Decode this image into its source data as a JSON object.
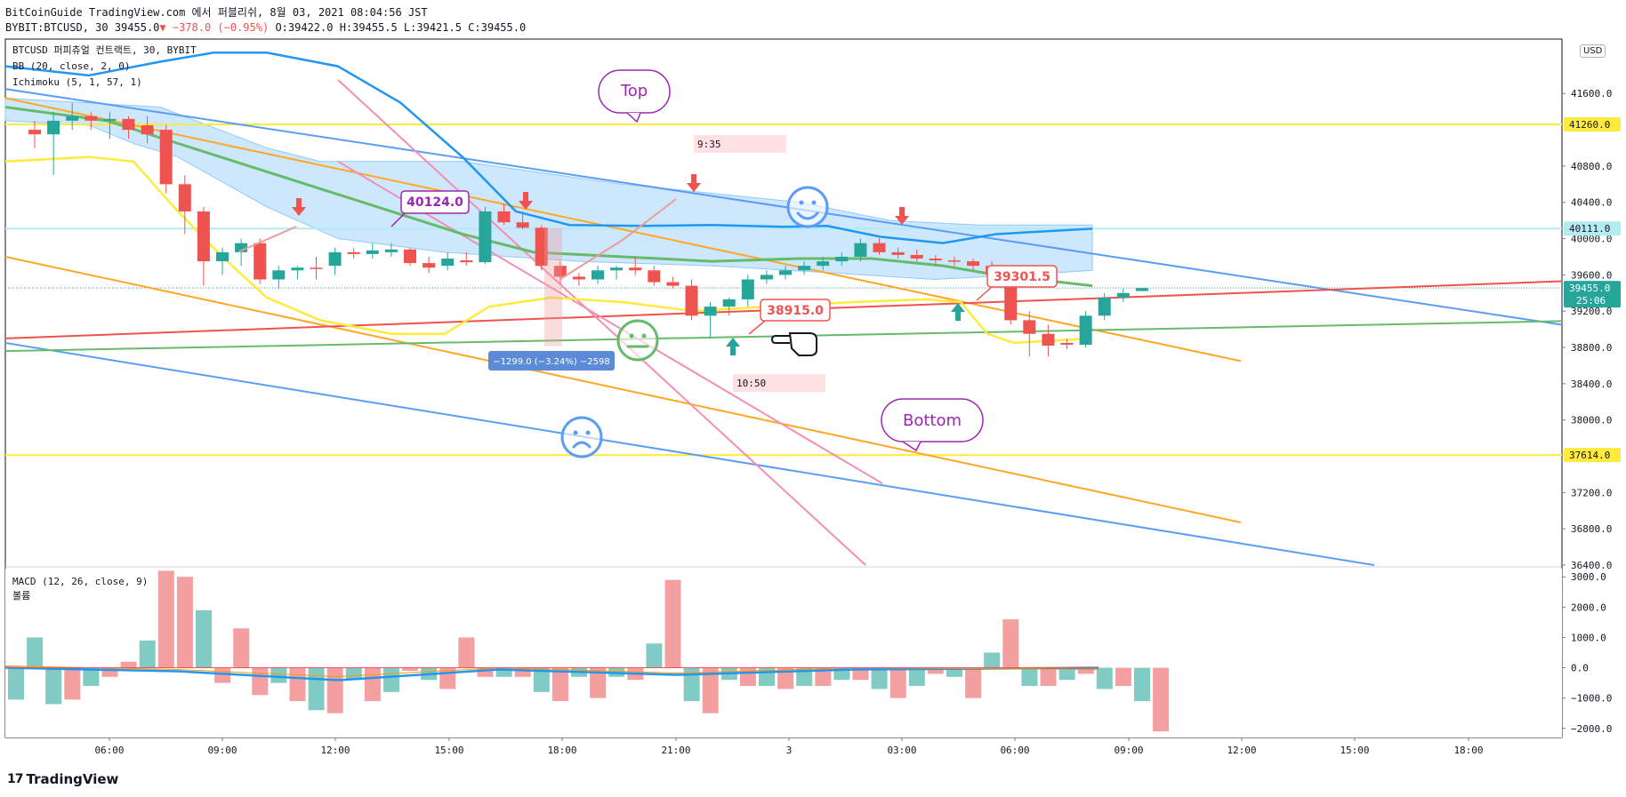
{
  "header": {
    "line1": "BitCoinGuide TradingView.com 에서 퍼블리쉬, 8월 03, 2021 08:04:56 JST",
    "line2_prefix": "BYBIT:BTCUSD, 30 39455.0",
    "line2_change": "▼ −378.0 (−0.95%)",
    "line2_ohlc": " O:39422.0 H:39455.5 L:39421.5 C:39455.0"
  },
  "legend": {
    "symbol": "BTCUSD 퍼피츄얼 컨트랙트, 30, BYBIT",
    "bb": "BB (20, close, 2, 0)",
    "ichimoku": "Ichimoku (5, 1, 57, 1)",
    "macd": "MACD (12, 26, close, 9)",
    "volume": "볼륨"
  },
  "currency": "USD",
  "footer": {
    "brand": "TradingView",
    "logo_glyph": "17"
  },
  "colors": {
    "up": "#26a69a",
    "down": "#ef5350",
    "bb_mid": "#66bb6a",
    "bb_upper": "#2196f3",
    "bb_lower": "#ffeb3b",
    "cloud": "#90caf9",
    "hline": "#ffeb3b",
    "trend_blue": "#5b9cf6",
    "trend_orange": "#ffa726",
    "trend_pink": "#f48fb1",
    "trend_red": "#ef5350",
    "trend_green": "#66bb6a",
    "annot_purple": "#9c27b0"
  },
  "chart_data": [
    {
      "type": "candlestick",
      "title": "BTCUSD 퍼피츄얼 컨트랙트, 30, BYBIT",
      "x_tick_labels": [
        "06:00",
        "09:00",
        "12:00",
        "15:00",
        "18:00",
        "21:00",
        "3",
        "03:00",
        "06:00",
        "09:00",
        "12:00",
        "15:00",
        "18:00"
      ],
      "y_tick_labels": [
        "41600.0",
        "40800.0",
        "40400.0",
        "40000.0",
        "39600.0",
        "39200.0",
        "38800.0",
        "38400.0",
        "38000.0",
        "37200.0",
        "36800.0",
        "36400.0"
      ],
      "ylim": [
        36400,
        42200
      ],
      "price_labels": [
        {
          "value": "41260.0",
          "color": "#ffeb3b"
        },
        {
          "value": "40111.0",
          "color": "#b2ebf2"
        },
        {
          "value": "39455.0",
          "sub": "25:06",
          "color": "#26a69a"
        },
        {
          "value": "37614.0",
          "color": "#ffeb3b"
        }
      ],
      "horizontal_lines": [
        41260,
        40111,
        37614
      ],
      "candles": [
        {
          "o": 41200,
          "h": 41300,
          "l": 41000,
          "c": 41150
        },
        {
          "o": 41150,
          "h": 41400,
          "l": 40700,
          "c": 41300
        },
        {
          "o": 41300,
          "h": 41500,
          "l": 41200,
          "c": 41350
        },
        {
          "o": 41350,
          "h": 41400,
          "l": 41200,
          "c": 41300
        },
        {
          "o": 41300,
          "h": 41400,
          "l": 41100,
          "c": 41320
        },
        {
          "o": 41320,
          "h": 41350,
          "l": 41100,
          "c": 41200
        },
        {
          "o": 41250,
          "h": 41350,
          "l": 41050,
          "c": 41150
        },
        {
          "o": 41200,
          "h": 41250,
          "l": 40500,
          "c": 40600
        },
        {
          "o": 40600,
          "h": 40700,
          "l": 40050,
          "c": 40300
        },
        {
          "o": 40300,
          "h": 40350,
          "l": 39480,
          "c": 39750
        },
        {
          "o": 39750,
          "h": 39900,
          "l": 39600,
          "c": 39850
        },
        {
          "o": 39850,
          "h": 40000,
          "l": 39700,
          "c": 39950
        },
        {
          "o": 39950,
          "h": 40000,
          "l": 39500,
          "c": 39550
        },
        {
          "o": 39550,
          "h": 39700,
          "l": 39450,
          "c": 39650
        },
        {
          "o": 39650,
          "h": 39700,
          "l": 39550,
          "c": 39680
        },
        {
          "o": 39680,
          "h": 39800,
          "l": 39550,
          "c": 39670
        },
        {
          "o": 39700,
          "h": 39900,
          "l": 39600,
          "c": 39850
        },
        {
          "o": 39850,
          "h": 39900,
          "l": 39780,
          "c": 39830
        },
        {
          "o": 39830,
          "h": 39950,
          "l": 39780,
          "c": 39870
        },
        {
          "o": 39850,
          "h": 39950,
          "l": 39800,
          "c": 39880
        },
        {
          "o": 39880,
          "h": 39900,
          "l": 39700,
          "c": 39730
        },
        {
          "o": 39730,
          "h": 39800,
          "l": 39620,
          "c": 39680
        },
        {
          "o": 39700,
          "h": 39850,
          "l": 39650,
          "c": 39780
        },
        {
          "o": 39760,
          "h": 39850,
          "l": 39700,
          "c": 39740
        },
        {
          "o": 39740,
          "h": 40350,
          "l": 39720,
          "c": 40300
        },
        {
          "o": 40300,
          "h": 40380,
          "l": 40150,
          "c": 40180
        },
        {
          "o": 40180,
          "h": 40300,
          "l": 40100,
          "c": 40120
        },
        {
          "o": 40120,
          "h": 40150,
          "l": 39650,
          "c": 39700
        },
        {
          "o": 39700,
          "h": 39750,
          "l": 39500,
          "c": 39580
        },
        {
          "o": 39580,
          "h": 39620,
          "l": 39480,
          "c": 39550
        },
        {
          "o": 39550,
          "h": 39700,
          "l": 39500,
          "c": 39650
        },
        {
          "o": 39650,
          "h": 39700,
          "l": 39550,
          "c": 39680
        },
        {
          "o": 39680,
          "h": 39800,
          "l": 39600,
          "c": 39650
        },
        {
          "o": 39650,
          "h": 39700,
          "l": 39480,
          "c": 39520
        },
        {
          "o": 39520,
          "h": 39580,
          "l": 39450,
          "c": 39480
        },
        {
          "o": 39480,
          "h": 39550,
          "l": 39100,
          "c": 39150
        },
        {
          "o": 39150,
          "h": 39300,
          "l": 38900,
          "c": 39250
        },
        {
          "o": 39250,
          "h": 39350,
          "l": 39150,
          "c": 39330
        },
        {
          "o": 39330,
          "h": 39600,
          "l": 39250,
          "c": 39550
        },
        {
          "o": 39550,
          "h": 39650,
          "l": 39500,
          "c": 39600
        },
        {
          "o": 39600,
          "h": 39700,
          "l": 39550,
          "c": 39650
        },
        {
          "o": 39650,
          "h": 39750,
          "l": 39600,
          "c": 39700
        },
        {
          "o": 39700,
          "h": 39800,
          "l": 39650,
          "c": 39750
        },
        {
          "o": 39750,
          "h": 39850,
          "l": 39700,
          "c": 39800
        },
        {
          "o": 39800,
          "h": 40000,
          "l": 39750,
          "c": 39950
        },
        {
          "o": 39950,
          "h": 40000,
          "l": 39820,
          "c": 39850
        },
        {
          "o": 39850,
          "h": 39900,
          "l": 39780,
          "c": 39820
        },
        {
          "o": 39820,
          "h": 39880,
          "l": 39750,
          "c": 39780
        },
        {
          "o": 39780,
          "h": 39820,
          "l": 39700,
          "c": 39760
        },
        {
          "o": 39760,
          "h": 39800,
          "l": 39700,
          "c": 39750
        },
        {
          "o": 39750,
          "h": 39780,
          "l": 39650,
          "c": 39700
        },
        {
          "o": 39700,
          "h": 39750,
          "l": 39550,
          "c": 39600
        },
        {
          "o": 39500,
          "h": 39550,
          "l": 39050,
          "c": 39100
        },
        {
          "o": 39100,
          "h": 39200,
          "l": 38700,
          "c": 38950
        },
        {
          "o": 38950,
          "h": 39050,
          "l": 38700,
          "c": 38820
        },
        {
          "o": 38850,
          "h": 38900,
          "l": 38780,
          "c": 38830
        },
        {
          "o": 38830,
          "h": 39200,
          "l": 38800,
          "c": 39150
        },
        {
          "o": 39150,
          "h": 39400,
          "l": 39100,
          "c": 39350
        },
        {
          "o": 39350,
          "h": 39450,
          "l": 39300,
          "c": 39400
        },
        {
          "o": 39422,
          "h": 39455.5,
          "l": 39421.5,
          "c": 39455
        }
      ],
      "annotations": [
        {
          "text": "Top",
          "kind": "callout"
        },
        {
          "text": "Bottom",
          "kind": "callout"
        },
        {
          "text": "40124.0",
          "kind": "price-note"
        },
        {
          "text": "38915.0",
          "kind": "price-note"
        },
        {
          "text": "39301.5",
          "kind": "price-note"
        },
        {
          "text": "9:35",
          "kind": "time-range"
        },
        {
          "text": "10:50",
          "kind": "time-range"
        },
        {
          "text": "−1299.0 (−3.24%) −2598",
          "kind": "measure"
        }
      ]
    },
    {
      "type": "bar",
      "title": "MACD (12, 26, close, 9)",
      "y_tick_labels": [
        "3000.0",
        "2000.0",
        "1000.0",
        "0.0",
        "−1000.0",
        "−2000.0"
      ],
      "ylim": [
        -2300,
        3300
      ],
      "bars": [
        -1050,
        1000,
        -1200,
        -1050,
        -600,
        -300,
        200,
        900,
        3200,
        3000,
        1900,
        -500,
        1300,
        -900,
        -500,
        -1100,
        -1400,
        -1500,
        -400,
        -1100,
        -800,
        -100,
        -400,
        -700,
        1000,
        -300,
        -300,
        -300,
        -800,
        -1100,
        -300,
        -1000,
        -300,
        -400,
        800,
        2900,
        -1100,
        -1500,
        -400,
        -600,
        -600,
        -700,
        -600,
        -600,
        -400,
        -400,
        -700,
        -1000,
        -600,
        -200,
        -300,
        -1000,
        500,
        1600,
        -600,
        -600,
        -400,
        -200,
        -700,
        -600,
        -1100,
        -2100
      ]
    }
  ]
}
